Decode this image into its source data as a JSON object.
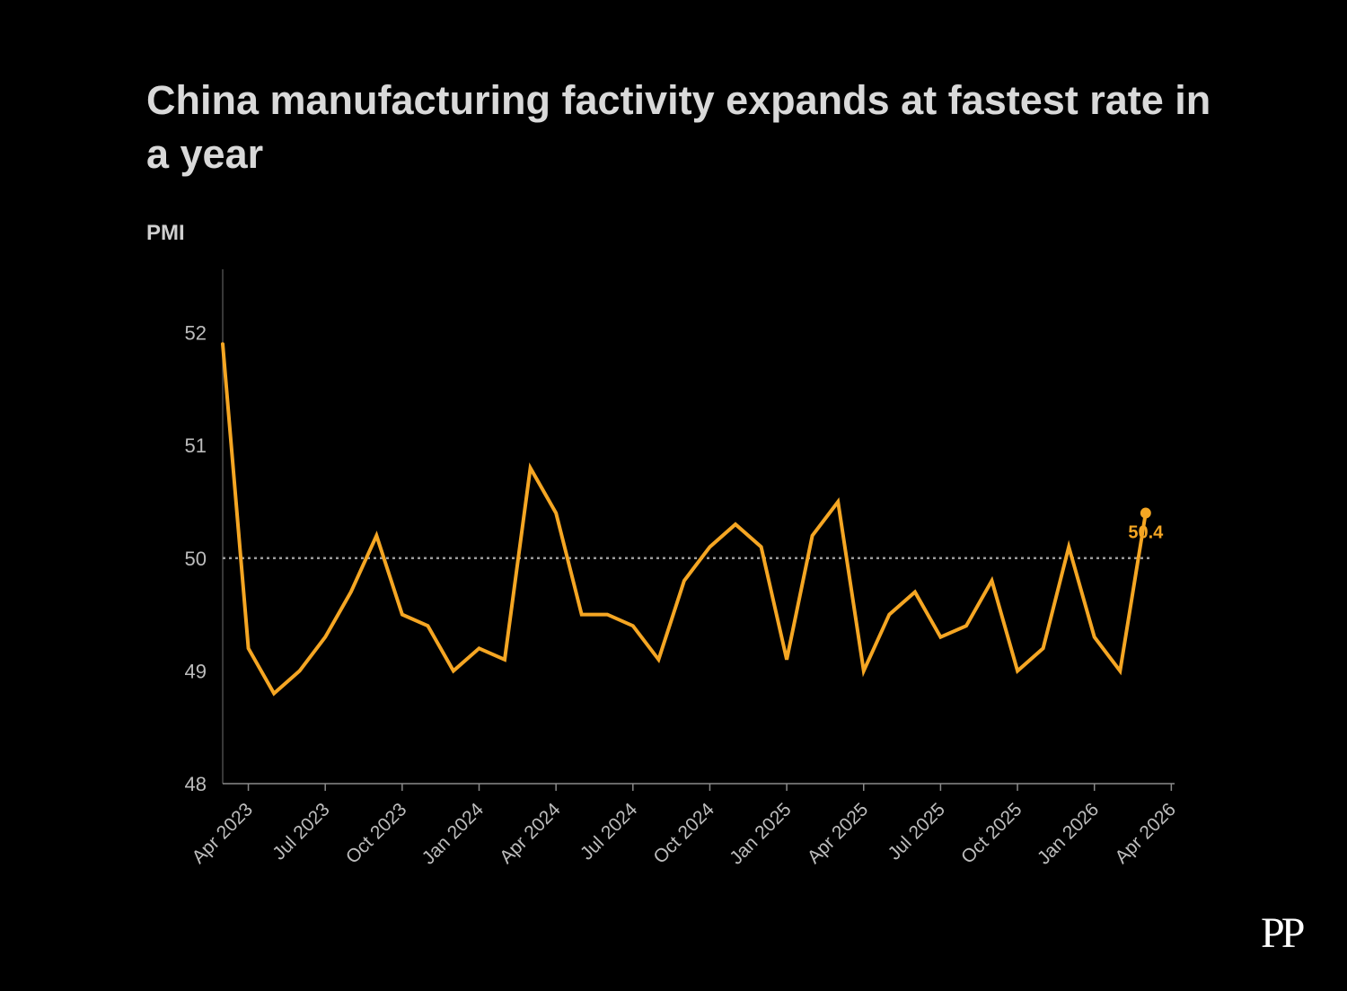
{
  "chart_data": {
    "type": "line",
    "title": "China manufacturing factivity expands at fastest rate in a year",
    "ylabel": "PMI",
    "xlabel": "",
    "ylim": [
      48,
      52.55
    ],
    "yticks": [
      48,
      49,
      50,
      51,
      52
    ],
    "reference_line": 50,
    "grid": false,
    "x_tick_labels": [
      "Apr 2023",
      "Jul 2023",
      "Oct 2023",
      "Jan 2024",
      "Apr 2024",
      "Jul 2024",
      "Oct 2024",
      "Jan 2025",
      "Apr 2025",
      "Jul 2025",
      "Oct 2025",
      "Jan 2026",
      "Apr 2026"
    ],
    "series": [
      {
        "name": "PMI",
        "color": "#f5a623",
        "x": [
          "Mar 2023",
          "Apr 2023",
          "May 2023",
          "Jun 2023",
          "Jul 2023",
          "Aug 2023",
          "Sep 2023",
          "Oct 2023",
          "Nov 2023",
          "Dec 2023",
          "Jan 2024",
          "Feb 2024",
          "Mar 2024",
          "Apr 2024",
          "May 2024",
          "Jun 2024",
          "Jul 2024",
          "Aug 2024",
          "Sep 2024",
          "Oct 2024",
          "Nov 2024",
          "Dec 2024",
          "Jan 2025",
          "Feb 2025",
          "Mar 2025",
          "Apr 2025",
          "May 2025",
          "Jun 2025",
          "Jul 2025",
          "Aug 2025",
          "Sep 2025",
          "Oct 2025",
          "Nov 2025",
          "Dec 2025",
          "Jan 2026",
          "Feb 2026",
          "Mar 2026"
        ],
        "values": [
          51.9,
          49.2,
          48.8,
          49.0,
          49.3,
          49.7,
          50.2,
          49.5,
          49.4,
          49.0,
          49.2,
          49.1,
          50.8,
          50.4,
          49.5,
          49.5,
          49.4,
          49.1,
          49.8,
          50.1,
          50.3,
          50.1,
          49.1,
          50.2,
          50.5,
          49.0,
          49.5,
          49.7,
          49.3,
          49.4,
          49.8,
          49.0,
          49.2,
          50.1,
          49.3,
          49.0,
          50.4
        ]
      }
    ],
    "last_value_label": "50.4"
  },
  "brand": {
    "logo_text": "PP"
  }
}
